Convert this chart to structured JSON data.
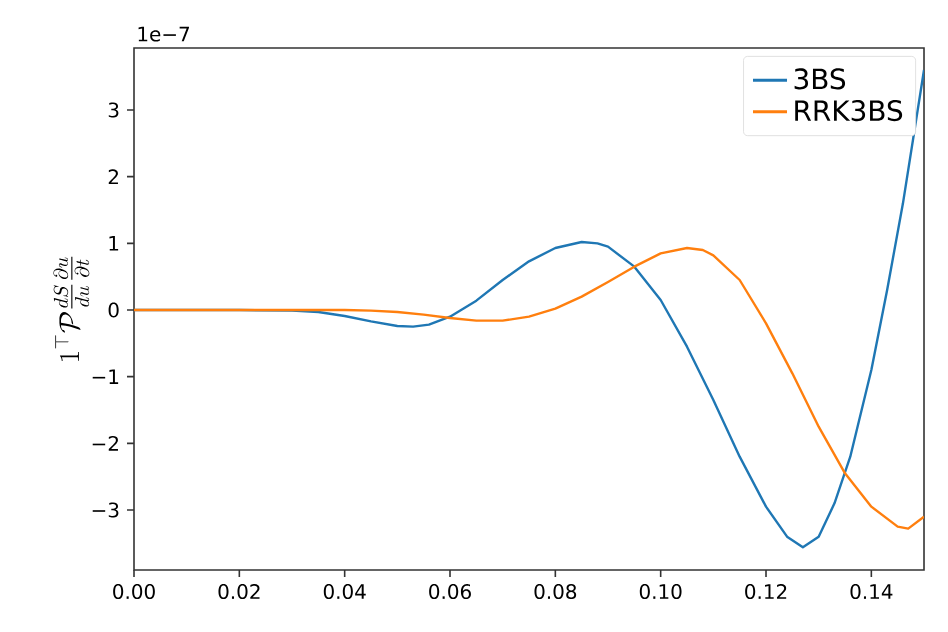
{
  "chart_data": {
    "type": "line",
    "ylabel": "1^\\top \\mathcal{P}\\frac{dS}{du}\\frac{\\partial u}{\\partial t}",
    "annotations": [
      "1e−7"
    ],
    "xlim": [
      0,
      0.15
    ],
    "ylim": [
      -3.9,
      3.93
    ],
    "xticks": [
      {
        "value": 0,
        "label": "0.00"
      },
      {
        "value": 0.02,
        "label": "0.02"
      },
      {
        "value": 0.04,
        "label": "0.04"
      },
      {
        "value": 0.06,
        "label": "0.06"
      },
      {
        "value": 0.08,
        "label": "0.08"
      },
      {
        "value": 0.1,
        "label": "0.10"
      },
      {
        "value": 0.12,
        "label": "0.12"
      },
      {
        "value": 0.14,
        "label": "0.14"
      }
    ],
    "yticks": [
      {
        "value": -3,
        "label": "−3"
      },
      {
        "value": -2,
        "label": "−2"
      },
      {
        "value": -1,
        "label": "−1"
      },
      0,
      1,
      2,
      3
    ],
    "legend": "top right",
    "grid": false,
    "marker": "none",
    "line_style": "solid",
    "series": [
      {
        "name": "3BS",
        "color": "#1f77b4",
        "x": [
          0,
          0.02,
          0.03,
          0.035,
          0.04,
          0.045,
          0.05,
          0.053,
          0.056,
          0.06,
          0.065,
          0.07,
          0.075,
          0.08,
          0.085,
          0.088,
          0.09,
          0.095,
          0.1,
          0.105,
          0.11,
          0.115,
          0.12,
          0.124,
          0.127,
          0.13,
          0.133,
          0.136,
          0.14,
          0.143,
          0.146,
          0.15
        ],
        "values": [
          0,
          0,
          -0.01,
          -0.03,
          -0.09,
          -0.17,
          -0.24,
          -0.25,
          -0.22,
          -0.1,
          0.14,
          0.45,
          0.73,
          0.93,
          1.02,
          1.0,
          0.95,
          0.65,
          0.15,
          -0.55,
          -1.35,
          -2.2,
          -2.95,
          -3.4,
          -3.56,
          -3.4,
          -2.9,
          -2.2,
          -0.9,
          0.3,
          1.6,
          3.6
        ]
      },
      {
        "name": "RRK3BS",
        "color": "#ff7f0e",
        "x": [
          0,
          0.03,
          0.04,
          0.045,
          0.05,
          0.055,
          0.06,
          0.065,
          0.07,
          0.075,
          0.08,
          0.085,
          0.09,
          0.095,
          0.1,
          0.105,
          0.108,
          0.11,
          0.115,
          0.12,
          0.125,
          0.13,
          0.135,
          0.14,
          0.145,
          0.147,
          0.15
        ],
        "values": [
          0,
          0,
          0,
          -0.01,
          -0.03,
          -0.07,
          -0.12,
          -0.16,
          -0.16,
          -0.1,
          0.02,
          0.2,
          0.42,
          0.65,
          0.85,
          0.93,
          0.9,
          0.82,
          0.45,
          -0.2,
          -0.95,
          -1.75,
          -2.45,
          -2.95,
          -3.25,
          -3.28,
          -3.1
        ]
      }
    ]
  }
}
